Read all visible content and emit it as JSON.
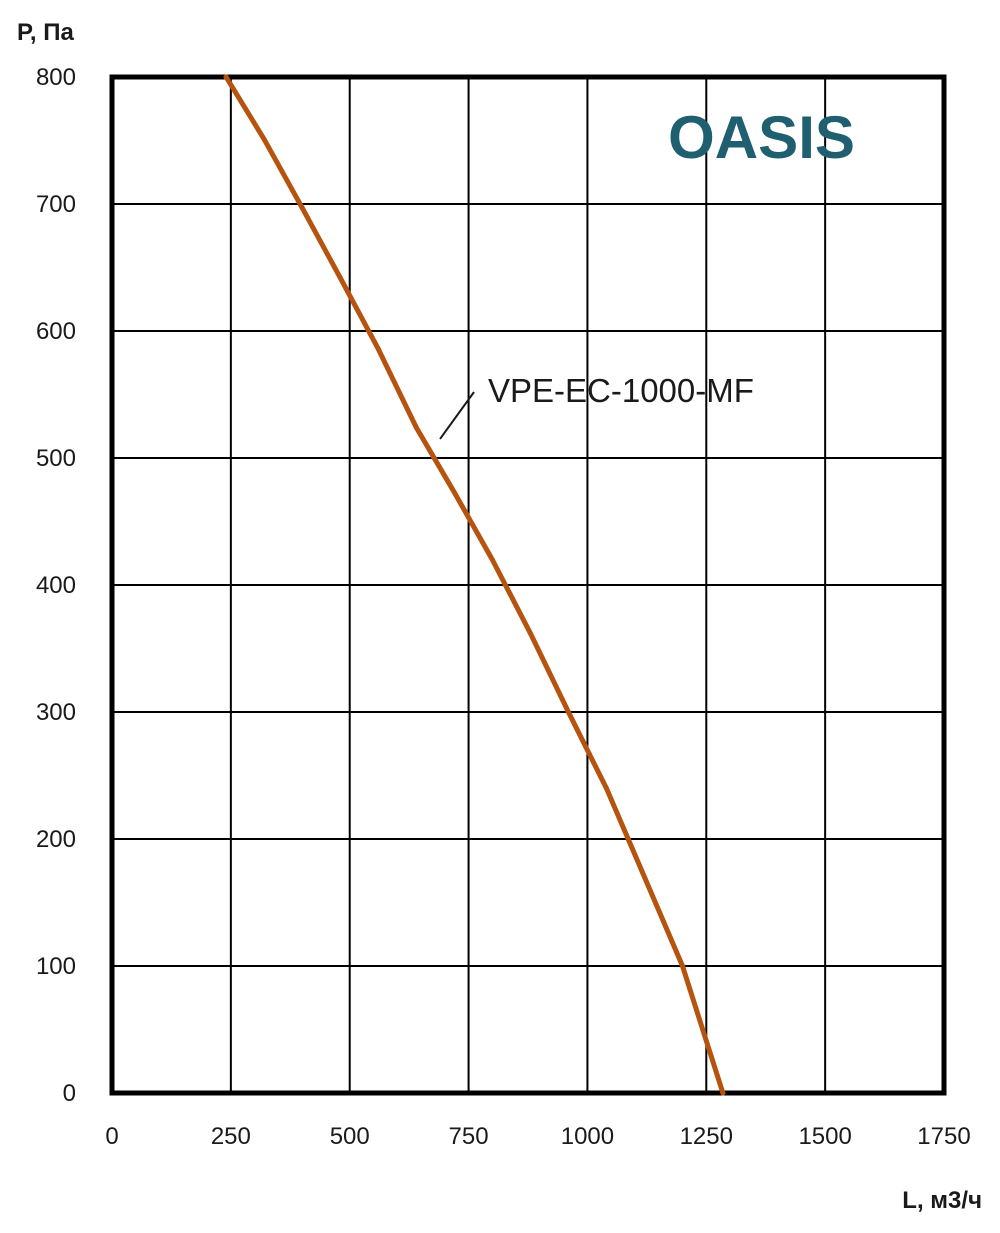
{
  "chart_data": {
    "type": "line",
    "title": "",
    "brand": "OASIS",
    "xlabel": "L, м3/ч",
    "ylabel": "P, Па",
    "xlim": [
      0,
      1750
    ],
    "ylim": [
      0,
      800
    ],
    "x_ticks": [
      0,
      250,
      500,
      750,
      1000,
      1250,
      1500,
      1750
    ],
    "y_ticks": [
      0,
      100,
      200,
      300,
      400,
      500,
      600,
      700,
      800
    ],
    "grid": true,
    "series": [
      {
        "name": "VPE-EC-1000-MF",
        "color": "#b5530f",
        "x": [
          240,
          320,
          400,
          480,
          560,
          640,
          720,
          800,
          880,
          960,
          1040,
          1120,
          1200,
          1285
        ],
        "y": [
          800,
          751,
          697,
          642,
          586,
          524,
          473,
          420,
          362,
          300,
          240,
          170,
          100,
          0
        ]
      }
    ],
    "series_label_anchor": {
      "x": 690,
      "y": 515
    }
  }
}
